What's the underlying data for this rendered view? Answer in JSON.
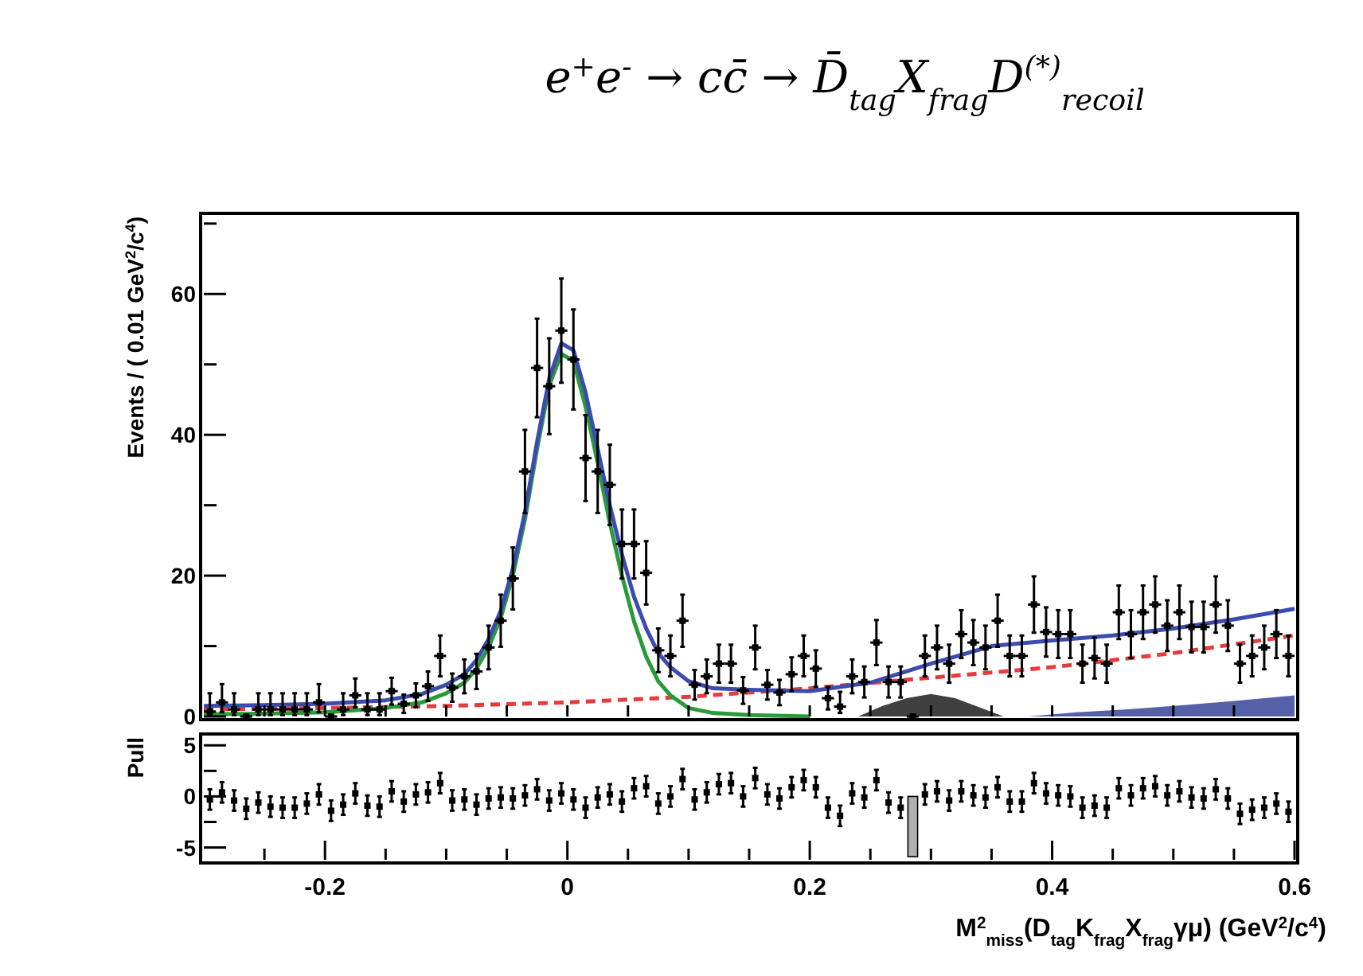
{
  "chart_data": [
    {
      "type": "scatter",
      "title": "e$^{+}$e$^{-}$ → cc̄ → D̄$_{tag}$X$_{frag}$D$^{(*)}$$_{recoil}$",
      "ylabel": "Events / ( 0.01 GeV$^{2}$/c$^{4}$)",
      "xlim": [
        -0.3,
        0.6
      ],
      "ylim": [
        0,
        71
      ],
      "tick_labels": "y",
      "xticks": [
        {
          "value": -0.25,
          "label": null
        },
        {
          "value": -0.2,
          "label": null
        },
        {
          "value": -0.15,
          "label": null
        },
        {
          "value": -0.1,
          "label": null
        },
        {
          "value": -0.05,
          "label": null
        },
        {
          "value": 0,
          "label": null
        },
        {
          "value": 0.05,
          "label": null
        },
        {
          "value": 0.1,
          "label": null
        },
        {
          "value": 0.15,
          "label": null
        },
        {
          "value": 0.2,
          "label": null
        },
        {
          "value": 0.25,
          "label": null
        },
        {
          "value": 0.3,
          "label": null
        },
        {
          "value": 0.35,
          "label": null
        },
        {
          "value": 0.4,
          "label": null
        },
        {
          "value": 0.45,
          "label": null
        },
        {
          "value": 0.5,
          "label": null
        },
        {
          "value": 0.55,
          "label": null
        }
      ],
      "yticks": [
        0,
        {
          "value": 10,
          "label": null
        },
        20,
        {
          "value": 30,
          "label": null
        },
        40,
        {
          "value": 50,
          "label": null
        },
        60,
        {
          "value": 70,
          "label": null
        }
      ],
      "series": [
        {
          "type": "area",
          "color": "#404040",
          "x": [
            0.24,
            0.26,
            0.28,
            0.3,
            0.32,
            0.34,
            0.36
          ],
          "values": [
            0,
            1.5,
            2.6,
            3.2,
            2.6,
            1.3,
            0
          ]
        },
        {
          "type": "area",
          "color": "#5560a8",
          "x": [
            0.38,
            0.42,
            0.46,
            0.5,
            0.55,
            0.6
          ],
          "values": [
            0,
            0.6,
            1,
            1.5,
            2.2,
            3
          ]
        },
        {
          "type": "line",
          "line_style": "dashed",
          "color": "#e83a3a",
          "x": [
            -0.3,
            -0.2,
            -0.1,
            0,
            0.1,
            0.2,
            0.3,
            0.4,
            0.5,
            0.6
          ],
          "values": [
            1,
            1.2,
            1.5,
            2,
            2.8,
            4,
            5.5,
            7,
            9,
            11.5
          ]
        },
        {
          "type": "line",
          "line_style": "solid",
          "color": "#2a9a3a",
          "x": [
            -0.3,
            -0.25,
            -0.2,
            -0.15,
            -0.12,
            -0.1,
            -0.085,
            -0.075,
            -0.065,
            -0.055,
            -0.045,
            -0.035,
            -0.025,
            -0.015,
            -0.005,
            0.005,
            0.015,
            0.025,
            0.035,
            0.045,
            0.055,
            0.065,
            0.075,
            0.085,
            0.1,
            0.12,
            0.15,
            0.2
          ],
          "values": [
            0.3,
            0.4,
            0.6,
            1.2,
            2,
            3.3,
            4.8,
            6.8,
            9.8,
            14,
            20,
            28,
            38,
            47,
            51.5,
            50.5,
            44,
            36,
            27.5,
            20,
            13.5,
            8.5,
            5,
            3,
            1.2,
            0.5,
            0.2,
            0
          ]
        },
        {
          "type": "line",
          "line_style": "solid",
          "color": "#3b4bb0",
          "x": [
            -0.3,
            -0.25,
            -0.2,
            -0.15,
            -0.12,
            -0.1,
            -0.085,
            -0.075,
            -0.065,
            -0.055,
            -0.045,
            -0.035,
            -0.025,
            -0.015,
            -0.005,
            0.005,
            0.015,
            0.025,
            0.035,
            0.045,
            0.055,
            0.065,
            0.075,
            0.085,
            0.1,
            0.12,
            0.15,
            0.2,
            0.25,
            0.3,
            0.35,
            0.4,
            0.45,
            0.5,
            0.55,
            0.6
          ],
          "values": [
            1.5,
            1.6,
            1.8,
            2.3,
            3.2,
            4.5,
            6,
            8,
            11,
            15,
            21,
            29,
            39,
            48,
            53,
            52,
            46,
            38,
            30,
            23,
            17,
            12.5,
            9,
            7,
            5,
            4,
            3.8,
            3.6,
            4.8,
            7.5,
            10,
            10.8,
            11.5,
            12.5,
            13.8,
            15.3
          ]
        },
        {
          "marker": "square",
          "color": "#000000",
          "x": [
            -0.295,
            -0.285,
            -0.275,
            -0.265,
            -0.255,
            -0.245,
            -0.235,
            -0.225,
            -0.215,
            -0.205,
            -0.195,
            -0.185,
            -0.175,
            -0.165,
            -0.155,
            -0.145,
            -0.135,
            -0.125,
            -0.115,
            -0.105,
            -0.095,
            -0.085,
            -0.075,
            -0.065,
            -0.055,
            -0.045,
            -0.035,
            -0.025,
            -0.015,
            -0.005,
            0.005,
            0.015,
            0.025,
            0.035,
            0.045,
            0.055,
            0.065,
            0.075,
            0.085,
            0.095,
            0.105,
            0.115,
            0.125,
            0.135,
            0.145,
            0.155,
            0.165,
            0.175,
            0.185,
            0.195,
            0.205,
            0.215,
            0.225,
            0.235,
            0.245,
            0.255,
            0.265,
            0.275,
            0.285,
            0.295,
            0.305,
            0.315,
            0.325,
            0.335,
            0.345,
            0.355,
            0.365,
            0.375,
            0.385,
            0.395,
            0.405,
            0.415,
            0.425,
            0.435,
            0.445,
            0.455,
            0.465,
            0.475,
            0.485,
            0.495,
            0.505,
            0.515,
            0.525,
            0.535,
            0.545,
            0.555,
            0.565,
            0.575,
            0.585,
            0.595
          ],
          "values": [
            0.7,
            2,
            1,
            0,
            1,
            1,
            1,
            1,
            1,
            2,
            0,
            1,
            3,
            1,
            1,
            3.6,
            1.8,
            3,
            4.3,
            8.6,
            4.1,
            5.7,
            6.4,
            9.8,
            13.6,
            19.6,
            34.8,
            49.5,
            46.9,
            54.8,
            50.7,
            36.7,
            34.8,
            32.9,
            24.5,
            24.5,
            20.4,
            9.4,
            8.6,
            13.6,
            4.5,
            5.7,
            7.5,
            7.5,
            3.7,
            9.8,
            4.5,
            3.4,
            6,
            8.6,
            6.8,
            2.6,
            1.4,
            5.7,
            4.9,
            10.5,
            4.9,
            4.9,
            0,
            8.6,
            9.8,
            7.5,
            11.7,
            10.5,
            9.8,
            13.6,
            8.6,
            8.6,
            15.9,
            12,
            11.7,
            11.7,
            7.5,
            8.3,
            7.5,
            14.8,
            11.7,
            14.8,
            15.9,
            12.9,
            14.8,
            12.7,
            12.7,
            15.9,
            12.9,
            7.5,
            8.6,
            9.8,
            11.7,
            8.6
          ],
          "errors": [
            [
              0.2,
              3.3
            ],
            [
              0.6,
              4.6
            ],
            [
              0.2,
              3.3
            ],
            null,
            [
              0.2,
              3.3
            ],
            [
              0.2,
              3.3
            ],
            [
              0.2,
              3.3
            ],
            [
              0.2,
              3.3
            ],
            [
              0.2,
              3.3
            ],
            [
              0.6,
              4.6
            ],
            null,
            [
              0.2,
              3.3
            ],
            [
              1.3,
              5.4
            ],
            [
              0.2,
              3.3
            ],
            [
              0.2,
              3.3
            ],
            1.9,
            1.3,
            1.7,
            2.1,
            2.9,
            2,
            2.4,
            2.5,
            3.1,
            3.7,
            4.4,
            5.9,
            7,
            6.8,
            7.4,
            7.1,
            6.1,
            5.9,
            5.7,
            4.9,
            4.9,
            4.5,
            3.1,
            2.9,
            3.7,
            2.1,
            2.4,
            2.7,
            2.7,
            1.9,
            3.1,
            2.1,
            1.8,
            2.4,
            2.9,
            2.6,
            1.6,
            [
              0.5,
              3.5
            ],
            2.4,
            2.2,
            3.2,
            2.2,
            2.2,
            null,
            2.9,
            3.1,
            2.7,
            3.4,
            3.2,
            3.1,
            3.7,
            2.9,
            2.9,
            4,
            3.5,
            3.4,
            3.4,
            2.7,
            2.9,
            2.7,
            3.8,
            3.4,
            3.8,
            4,
            3.6,
            3.8,
            3.6,
            3.6,
            4,
            3.6,
            2.7,
            2.9,
            3.1,
            3.4,
            2.9
          ],
          "xerrors": [
            0.005,
            0.005,
            0.005,
            0.005,
            0.005,
            0.005,
            0.005,
            0.005,
            0.005,
            0.005,
            0.005,
            0.005,
            0.005,
            0.005,
            0.005,
            0.005,
            0.005,
            0.005,
            0.005,
            0.005,
            0.005,
            0.005,
            0.005,
            0.005,
            0.005,
            0.005,
            0.005,
            0.005,
            0.005,
            0.005,
            0.005,
            0.005,
            0.005,
            0.005,
            0.005,
            0.005,
            0.005,
            0.005,
            0.005,
            0.005,
            0.005,
            0.005,
            0.005,
            0.005,
            0.005,
            0.005,
            0.005,
            0.005,
            0.005,
            0.005,
            0.005,
            0.005,
            0.005,
            0.005,
            0.005,
            0.005,
            0.005,
            0.005,
            0.005,
            0.005,
            0.005,
            0.005,
            0.005,
            0.005,
            0.005,
            0.005,
            0.005,
            0.005,
            0.005,
            0.005,
            0.005,
            0.005,
            0.005,
            0.005,
            0.005,
            0.005,
            0.005,
            0.005,
            0.005,
            0.005,
            0.005,
            0.005,
            0.005,
            0.005,
            0.005,
            0.005,
            0.005,
            0.005,
            0.005,
            0.005
          ]
        }
      ]
    },
    {
      "type": "scatter",
      "ylabel": "Pull",
      "xlabel": "M$^{2}$$_{miss}$(D$_{tag}$K$_{frag}$X$_{frag}$γμ) (GeV$^{2}$/c$^{4}$)",
      "xlim": [
        -0.3,
        0.6
      ],
      "ylim": [
        -6.2,
        5.8
      ],
      "xticks": [
        {
          "value": -0.25,
          "label": null
        },
        -0.2,
        {
          "value": -0.15,
          "label": null
        },
        {
          "value": -0.1,
          "label": null
        },
        {
          "value": -0.05,
          "label": null
        },
        0,
        {
          "value": 0.05,
          "label": null
        },
        {
          "value": 0.1,
          "label": null
        },
        {
          "value": 0.15,
          "label": null
        },
        0.2,
        {
          "value": 0.25,
          "label": null
        },
        {
          "value": 0.3,
          "label": null
        },
        {
          "value": 0.35,
          "label": null
        },
        0.4,
        {
          "value": 0.45,
          "label": null
        },
        {
          "value": 0.5,
          "label": null
        },
        {
          "value": 0.55,
          "label": null
        },
        0.6
      ],
      "yticks": [
        -5,
        {
          "value": -2.5,
          "label": null
        },
        0,
        {
          "value": 2.5,
          "label": null
        },
        5
      ],
      "series": [
        {
          "type": "bar",
          "color": "#b0b0b0",
          "x": [
            0.285
          ],
          "values": [
            -5.9
          ]
        },
        {
          "marker": "square",
          "color": "#000000",
          "x": [
            -0.295,
            -0.285,
            -0.275,
            -0.265,
            -0.255,
            -0.245,
            -0.235,
            -0.225,
            -0.215,
            -0.205,
            -0.195,
            -0.185,
            -0.175,
            -0.165,
            -0.155,
            -0.145,
            -0.135,
            -0.125,
            -0.115,
            -0.105,
            -0.095,
            -0.085,
            -0.075,
            -0.065,
            -0.055,
            -0.045,
            -0.035,
            -0.025,
            -0.015,
            -0.005,
            0.005,
            0.015,
            0.025,
            0.035,
            0.045,
            0.055,
            0.065,
            0.075,
            0.085,
            0.095,
            0.105,
            0.115,
            0.125,
            0.135,
            0.145,
            0.155,
            0.165,
            0.175,
            0.185,
            0.195,
            0.205,
            0.215,
            0.225,
            0.235,
            0.245,
            0.255,
            0.265,
            0.275,
            0.285,
            0.295,
            0.305,
            0.315,
            0.325,
            0.335,
            0.345,
            0.355,
            0.365,
            0.375,
            0.385,
            0.395,
            0.405,
            0.415,
            0.425,
            0.435,
            0.445,
            0.455,
            0.465,
            0.475,
            0.485,
            0.495,
            0.505,
            0.515,
            0.525,
            0.535,
            0.545,
            0.555,
            0.565,
            0.575,
            0.585,
            0.595
          ],
          "values": [
            -0.3,
            0.4,
            -0.4,
            -1.2,
            -0.6,
            -1,
            -1.1,
            -1.1,
            -0.7,
            0.2,
            -1.4,
            -0.8,
            0.3,
            -0.9,
            -1,
            0.5,
            -0.5,
            0.2,
            0.4,
            1.3,
            -0.4,
            -0.3,
            -0.8,
            -0.2,
            -0.1,
            -0.2,
            0.1,
            0.7,
            -0.4,
            0.3,
            -0.3,
            -1.1,
            -0.1,
            0.2,
            -0.5,
            0.8,
            1,
            -0.7,
            0,
            1.7,
            -0.3,
            0.4,
            1.2,
            1.3,
            0,
            1.8,
            0.2,
            -0.2,
            0.9,
            1.6,
            0.9,
            -1.1,
            -1.9,
            0.3,
            -0.1,
            1.6,
            -0.6,
            -1.1,
            null,
            0.2,
            0.5,
            -0.4,
            0.5,
            0.1,
            -0.1,
            0.9,
            -0.5,
            -0.5,
            1.3,
            0.3,
            0.1,
            0,
            -1.1,
            -0.9,
            -1.1,
            0.8,
            0.1,
            0.8,
            1,
            0.1,
            0.5,
            -0.1,
            -0.2,
            0.7,
            -0.2,
            -1.7,
            -1.3,
            -1.1,
            -0.7,
            -1.5
          ],
          "errors": [
            1,
            1,
            1,
            1,
            1,
            1,
            1,
            1,
            1,
            1,
            1,
            1,
            1,
            1,
            1,
            1,
            1,
            1,
            1,
            1,
            1,
            1,
            1,
            1,
            1,
            1,
            1,
            1,
            1,
            1,
            1,
            1,
            1,
            1,
            1,
            1,
            1,
            1,
            1,
            1,
            1,
            1,
            1,
            1,
            1,
            1,
            1,
            1,
            1,
            1,
            1,
            1,
            1,
            1,
            1,
            1,
            1,
            1,
            null,
            1,
            1,
            1,
            1,
            1,
            1,
            1,
            1,
            1,
            1,
            1,
            1,
            1,
            1,
            1,
            1,
            1,
            1,
            1,
            1,
            1,
            1,
            1,
            1,
            1,
            1,
            1,
            1,
            1,
            1,
            1
          ]
        }
      ]
    }
  ]
}
